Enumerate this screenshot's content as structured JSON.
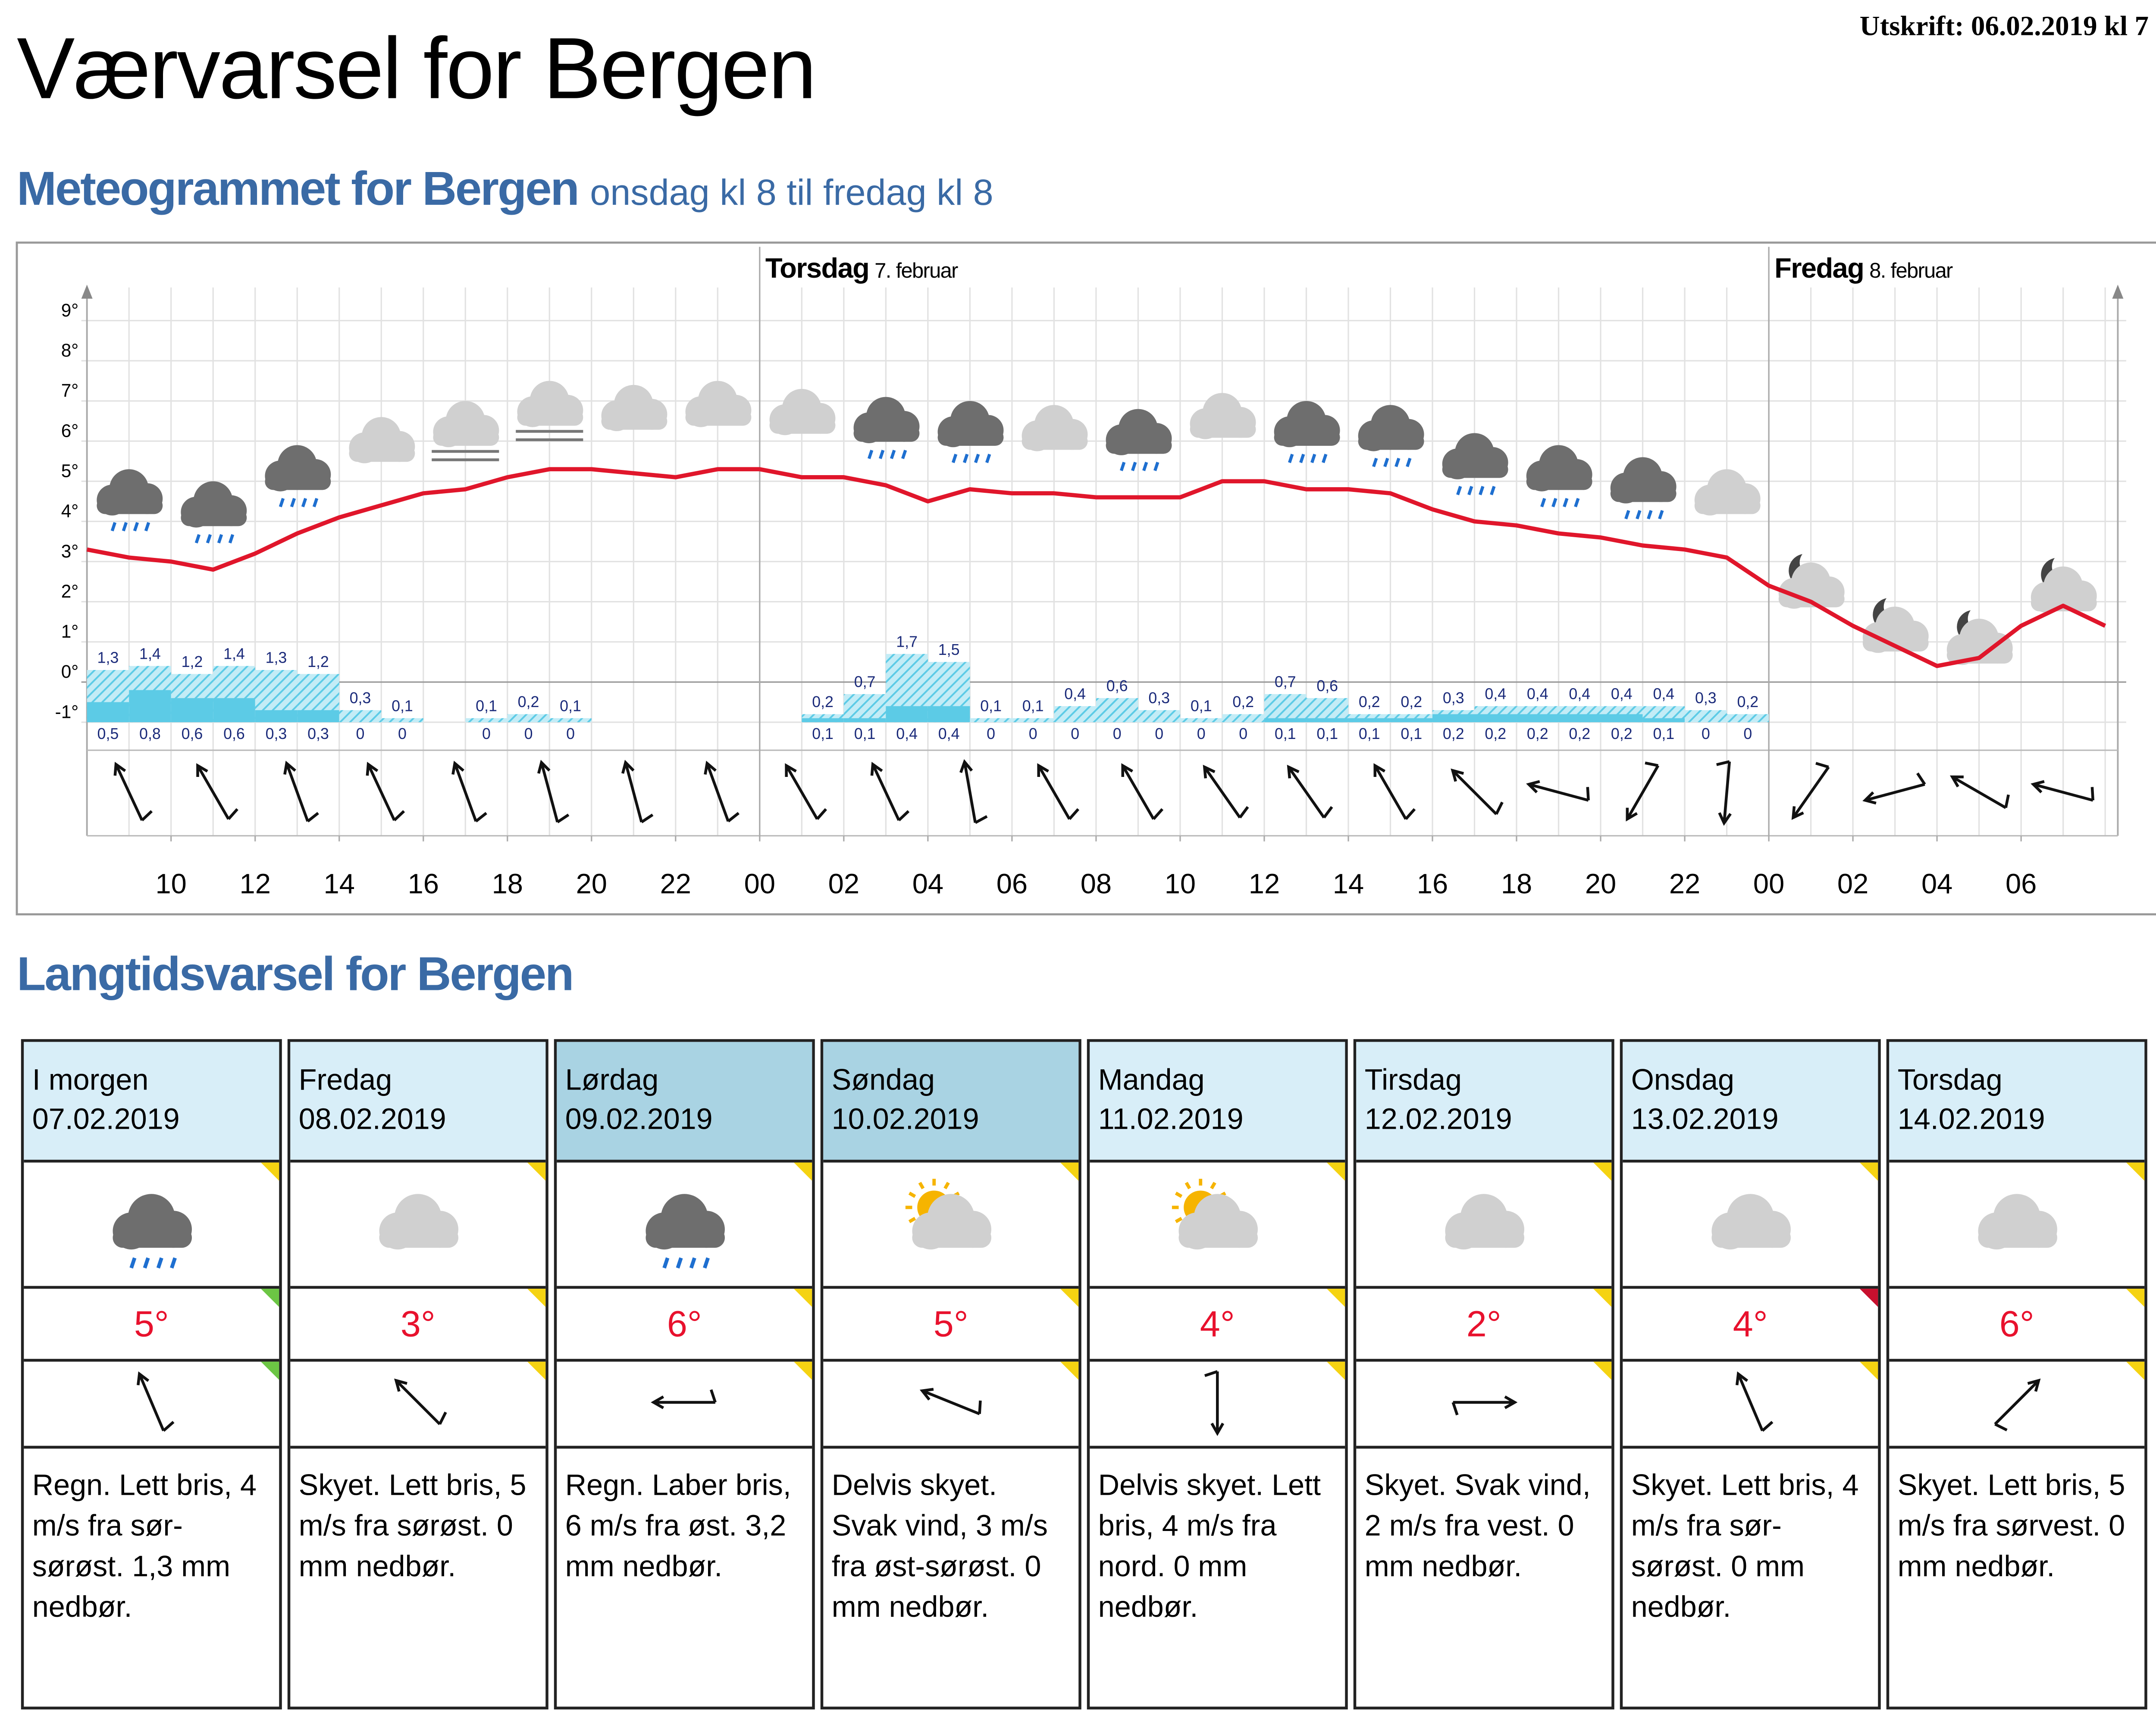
{
  "header": {
    "title": "Værvarsel for Bergen",
    "printed": "Utskrift: 06.02.2019 kl 7"
  },
  "chart_data": {
    "type": "meteogram",
    "title": "Meteogrammet for Bergen",
    "subtitle": "onsdag kl 8 til fredag kl 8",
    "day_markers": [
      {
        "x": 24,
        "day": "Torsdag",
        "date": "7. februar"
      },
      {
        "x": 48,
        "day": "Fredag",
        "date": "8. februar"
      }
    ],
    "xlim": [
      8,
      56.3
    ],
    "xticks": [
      10,
      12,
      14,
      16,
      18,
      20,
      22,
      {
        "value": 24,
        "label": "00"
      },
      {
        "value": 26,
        "label": "02"
      },
      {
        "value": 28,
        "label": "04"
      },
      {
        "value": 30,
        "label": "06"
      },
      {
        "value": 32,
        "label": "08"
      },
      {
        "value": 34,
        "label": "10"
      },
      {
        "value": 36,
        "label": "12"
      },
      {
        "value": 38,
        "label": "14"
      },
      {
        "value": 40,
        "label": "16"
      },
      {
        "value": 42,
        "label": "18"
      },
      {
        "value": 44,
        "label": "20"
      },
      {
        "value": 46,
        "label": "22"
      },
      {
        "value": 48,
        "label": "00"
      },
      {
        "value": 50,
        "label": "02"
      },
      {
        "value": 52,
        "label": "04"
      },
      {
        "value": 54,
        "label": "06"
      }
    ],
    "ylim": [
      -1,
      10
    ],
    "yticks": [
      {
        "value": -1,
        "label": "-1°"
      },
      {
        "value": 0,
        "label": "0°"
      },
      {
        "value": 1,
        "label": "1°"
      },
      {
        "value": 2,
        "label": "2°"
      },
      {
        "value": 3,
        "label": "3°"
      },
      {
        "value": 4,
        "label": "4°"
      },
      {
        "value": 5,
        "label": "5°"
      },
      {
        "value": 6,
        "label": "6°"
      },
      {
        "value": 7,
        "label": "7°"
      },
      {
        "value": 8,
        "label": "8°"
      },
      {
        "value": 9,
        "label": "9°"
      }
    ],
    "grid": true,
    "temperature": {
      "color": "#e0162b",
      "x": [
        8,
        9,
        10,
        11,
        12,
        13,
        14,
        15,
        16,
        17,
        18,
        19,
        20,
        21,
        22,
        23,
        24,
        25,
        26,
        27,
        28,
        29,
        30,
        31,
        32,
        33,
        34,
        35,
        36,
        37,
        38,
        39,
        40,
        41,
        42,
        43,
        44,
        45,
        46,
        47,
        48,
        49,
        50,
        51,
        52,
        53,
        54,
        55,
        56
      ],
      "values": [
        3.3,
        3.1,
        3.0,
        2.8,
        3.2,
        3.7,
        4.1,
        4.4,
        4.7,
        4.8,
        5.1,
        5.3,
        5.3,
        5.2,
        5.1,
        5.3,
        5.3,
        5.1,
        5.1,
        4.9,
        4.5,
        4.8,
        4.7,
        4.7,
        4.6,
        4.6,
        4.6,
        5.0,
        5.0,
        4.8,
        4.8,
        4.7,
        4.3,
        4.0,
        3.9,
        3.7,
        3.6,
        3.4,
        3.3,
        3.1,
        2.4,
        2.0,
        1.4,
        0.9,
        0.4,
        0.6,
        1.4,
        1.9,
        1.4
      ]
    },
    "precipitation": {
      "color": "#5ccbe6",
      "x": [
        8,
        9,
        10,
        11,
        12,
        13,
        14,
        15,
        17,
        18,
        19,
        25,
        26,
        27,
        28,
        29,
        30,
        31,
        32,
        33,
        34,
        35,
        36,
        37,
        38,
        39,
        40,
        41,
        42,
        43,
        44,
        45,
        46,
        47
      ],
      "max": {
        "values": [
          1.3,
          1.4,
          1.2,
          1.4,
          1.3,
          1.2,
          0.3,
          0.1,
          0.1,
          0.2,
          0.1,
          0.2,
          0.7,
          1.7,
          1.5,
          0.1,
          0.1,
          0.4,
          0.6,
          0.3,
          0.1,
          0.2,
          0.7,
          0.6,
          0.2,
          0.2,
          0.3,
          0.4,
          0.4,
          0.4,
          0.4,
          0.4,
          0.3,
          0.2
        ],
        "value_labels": [
          "1,3",
          "1,4",
          "1,2",
          "1,4",
          "1,3",
          "1,2",
          "0,3",
          "0,1",
          "0,1",
          "0,2",
          "0,1",
          "0,2",
          "0,7",
          "1,7",
          "1,5",
          "0,1",
          "0,1",
          "0,4",
          "0,6",
          "0,3",
          "0,1",
          "0,2",
          "0,7",
          "0,6",
          "0,2",
          "0,2",
          "0,3",
          "0,4",
          "0,4",
          "0,4",
          "0,4",
          "0,4",
          "0,3",
          "0,2"
        ]
      },
      "min": {
        "values": [
          0.5,
          0.8,
          0.6,
          0.6,
          0.3,
          0.3,
          0,
          0,
          0,
          0,
          0,
          0.1,
          0.1,
          0.4,
          0.4,
          0,
          0,
          0,
          0,
          0,
          0,
          0,
          0.1,
          0.1,
          0.1,
          0.1,
          0.2,
          0.2,
          0.2,
          0.2,
          0.2,
          0.1,
          0,
          0
        ],
        "value_labels": [
          "0,5",
          "0,8",
          "0,6",
          "0,6",
          "0,3",
          "0,3",
          "0",
          "0",
          "0",
          "0",
          "0",
          "0,1",
          "0,1",
          "0,4",
          "0,4",
          "0",
          "0",
          "0",
          "0",
          "0",
          "0",
          "0",
          "0,1",
          "0,1",
          "0,1",
          "0,1",
          "0,2",
          "0,2",
          "0,2",
          "0,2",
          "0,2",
          "0,1",
          "0",
          "0"
        ]
      }
    },
    "wind": {
      "x": [
        9,
        11,
        13,
        15,
        17,
        19,
        21,
        23,
        25,
        27,
        29,
        31,
        33,
        35,
        37,
        39,
        41,
        43,
        45,
        47,
        49,
        51,
        53,
        55
      ],
      "direction": [
        155,
        150,
        160,
        155,
        160,
        165,
        165,
        160,
        150,
        155,
        170,
        150,
        150,
        145,
        145,
        150,
        135,
        105,
        30,
        5,
        35,
        75,
        120,
        105
      ]
    }
  },
  "forecast": {
    "heading": "Langtidsvarsel for Bergen",
    "days": [
      {
        "day": "I morgen",
        "date": "07.02.2019",
        "temperature": "5°",
        "wind_from": 157,
        "description": "Regn. Lett bris, 4 m/s fra sør-sørøst. 1,3 mm nedbør."
      },
      {
        "day": "Fredag",
        "date": "08.02.2019",
        "temperature": "3°",
        "wind_from": 135,
        "description": "Skyet. Lett bris, 5 m/s fra sørøst. 0 mm nedbør."
      },
      {
        "day": "Lørdag",
        "date": "09.02.2019",
        "temperature": "6°",
        "wind_from": 90,
        "description": "Regn. Laber bris, 6 m/s fra øst. 3,2 mm nedbør."
      },
      {
        "day": "Søndag",
        "date": "10.02.2019",
        "temperature": "5°",
        "wind_from": 112,
        "description": "Delvis skyet. Svak vind, 3 m/s fra øst-sørøst. 0 mm nedbør."
      },
      {
        "day": "Mandag",
        "date": "11.02.2019",
        "temperature": "4°",
        "wind_from": 0,
        "description": "Delvis skyet. Lett bris, 4 m/s fra nord. 0 mm nedbør."
      },
      {
        "day": "Tirsdag",
        "date": "12.02.2019",
        "temperature": "2°",
        "wind_from": 270,
        "description": "Skyet. Svak vind, 2 m/s fra vest. 0 mm nedbør."
      },
      {
        "day": "Onsdag",
        "date": "13.02.2019",
        "temperature": "4°",
        "wind_from": 157,
        "description": "Skyet. Lett bris, 4 m/s fra sør-sørøst. 0 mm nedbør."
      },
      {
        "day": "Torsdag",
        "date": "14.02.2019",
        "temperature": "6°",
        "wind_from": 225,
        "description": "Skyet. Lett bris, 5 m/s fra sørvest. 0 mm nedbør."
      }
    ]
  }
}
